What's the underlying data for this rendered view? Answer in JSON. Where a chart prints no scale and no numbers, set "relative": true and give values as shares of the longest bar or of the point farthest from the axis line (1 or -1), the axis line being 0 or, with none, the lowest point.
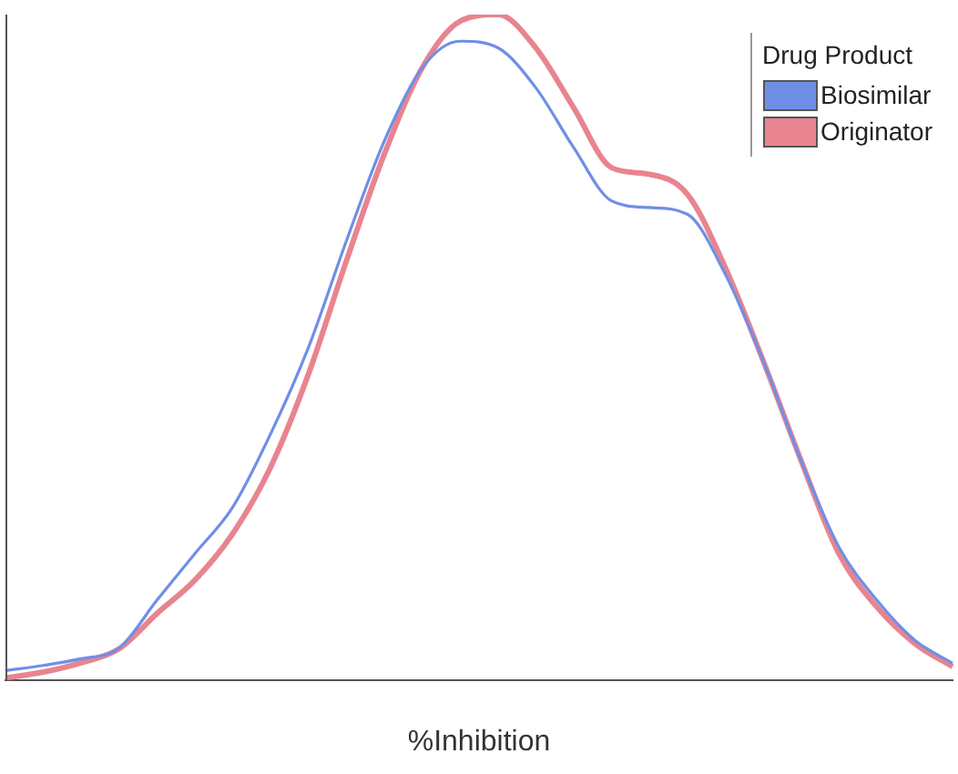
{
  "chart_data": {
    "type": "line",
    "xlabel": "%Inhibition",
    "legend_title": "Drug Product",
    "legend": "top right",
    "relative": true,
    "grid": false,
    "marker": "none",
    "line_style": "solid",
    "categories": [
      null,
      null,
      null,
      null,
      null,
      null,
      null,
      null,
      null,
      null,
      null,
      null,
      null,
      null,
      null,
      null,
      null,
      null,
      null,
      null,
      null,
      null,
      null,
      null,
      null,
      null
    ],
    "series": [
      {
        "name": "Biosimilar",
        "color": "#6f8fe6",
        "values": [
          0.014,
          0.022,
          0.032,
          0.048,
          0.12,
          0.19,
          0.26,
          0.37,
          0.5,
          0.66,
          0.81,
          0.92,
          0.96,
          0.95,
          0.89,
          0.8,
          0.72,
          0.71,
          0.7,
          0.61,
          0.48,
          0.33,
          0.2,
          0.12,
          0.06,
          0.025
        ]
      },
      {
        "name": "Originator",
        "color": "#e8848f",
        "values": [
          0.003,
          0.012,
          0.026,
          0.047,
          0.1,
          0.15,
          0.22,
          0.32,
          0.46,
          0.63,
          0.79,
          0.92,
          0.99,
          1.0,
          0.95,
          0.86,
          0.77,
          0.76,
          0.73,
          0.62,
          0.48,
          0.33,
          0.19,
          0.11,
          0.055,
          0.02
        ]
      }
    ]
  }
}
